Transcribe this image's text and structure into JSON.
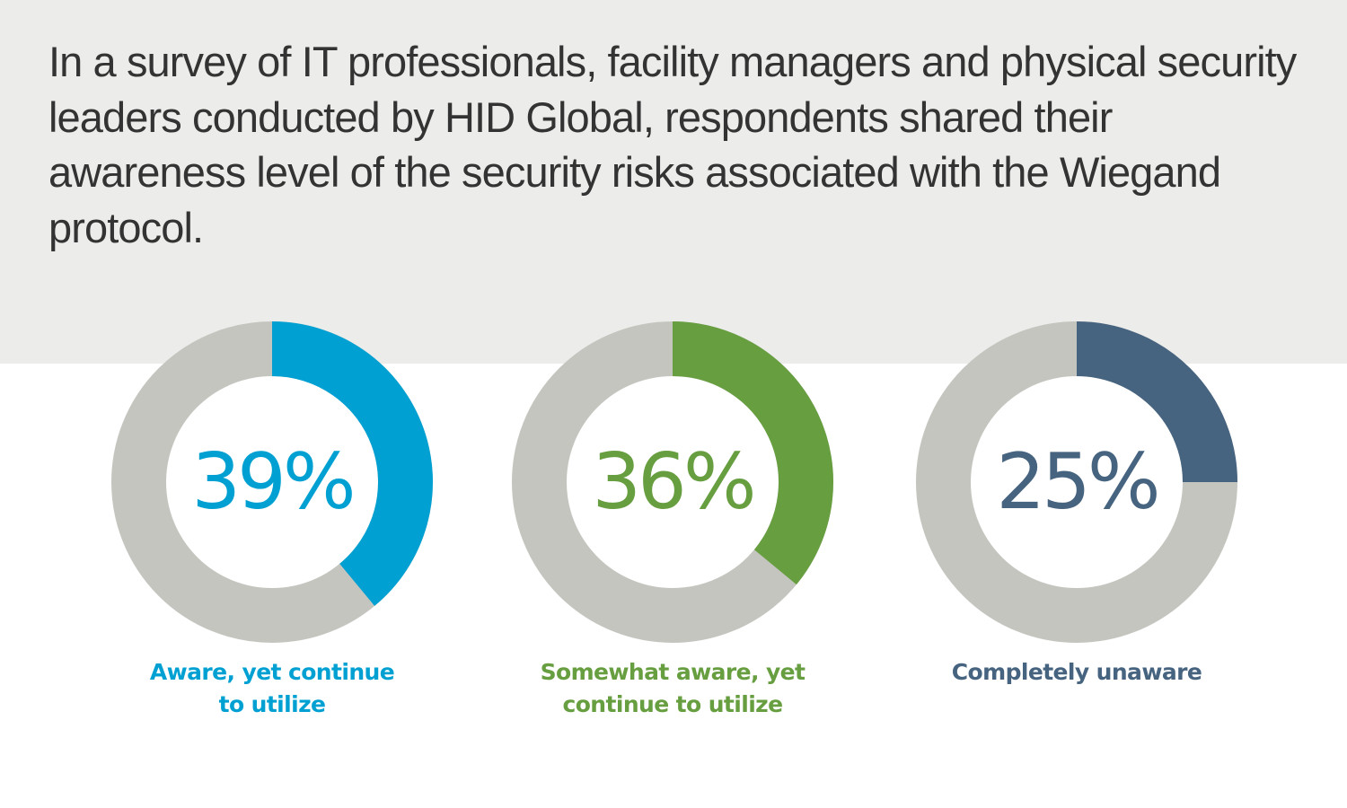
{
  "header": {
    "intro_text": "In a survey of IT professionals, facility managers and physical security leaders conducted by HID Global, respondents shared their awareness level of the security risks associated with the Wiegand protocol."
  },
  "colors": {
    "header_band": "#ececea",
    "intro_text": "#333333",
    "track_gray": "#c5c5c0",
    "blue": "#00a1d2",
    "green": "#679e40",
    "slate": "#46637f",
    "background": "#ffffff"
  },
  "donuts": [
    {
      "value": 39,
      "label": "39%",
      "caption_line1": "Aware, yet continue",
      "caption_line2": "to utilize",
      "color": "#00a1d2"
    },
    {
      "value": 36,
      "label": "36%",
      "caption_line1": "Somewhat aware, yet",
      "caption_line2": "continue to utilize",
      "color": "#679e40"
    },
    {
      "value": 25,
      "label": "25%",
      "caption_line1": "Completely unaware",
      "caption_line2": "",
      "color": "#46637f"
    }
  ],
  "chart_data": {
    "type": "pie",
    "subtype": "donut",
    "title": "In a survey of IT professionals, facility managers and physical security leaders conducted by HID Global, respondents shared their awareness level of the security risks associated with the Wiegand protocol.",
    "categories": [
      "Aware, yet continue to utilize",
      "Somewhat aware, yet continue to utilize",
      "Completely unaware"
    ],
    "values": [
      39,
      36,
      25
    ],
    "unit": "%",
    "colors": [
      "#00a1d2",
      "#679e40",
      "#46637f"
    ],
    "layout": "three separate donut charts, each showing one percentage against a gray remainder, arc starting at 12 o'clock clockwise",
    "legend": "captions below each donut"
  }
}
